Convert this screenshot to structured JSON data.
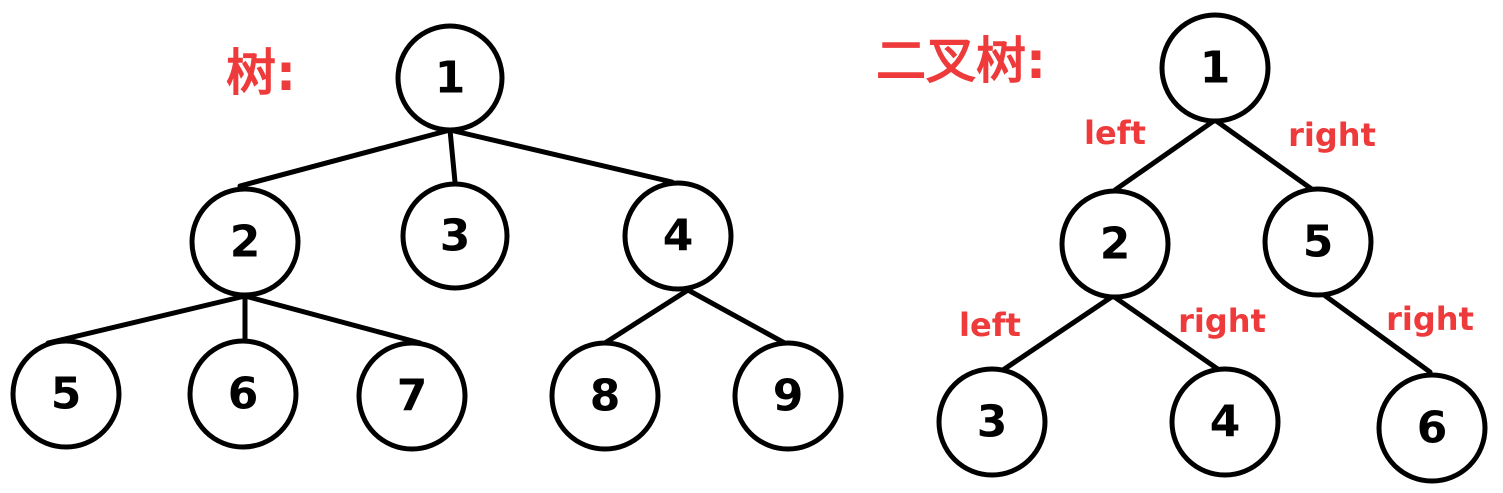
{
  "colors": {
    "accent": "#ee3a3a",
    "stroke": "#000000",
    "background": "#ffffff"
  },
  "general_tree": {
    "title": "树:",
    "nodes": [
      "1",
      "2",
      "3",
      "4",
      "5",
      "6",
      "7",
      "8",
      "9"
    ],
    "edges": [
      [
        "1",
        "2"
      ],
      [
        "1",
        "3"
      ],
      [
        "1",
        "4"
      ],
      [
        "2",
        "5"
      ],
      [
        "2",
        "6"
      ],
      [
        "2",
        "7"
      ],
      [
        "4",
        "8"
      ],
      [
        "4",
        "9"
      ]
    ]
  },
  "binary_tree": {
    "title": "二叉树:",
    "nodes": [
      "1",
      "2",
      "5",
      "3",
      "4",
      "6"
    ],
    "edges": [
      {
        "from": "1",
        "to": "2",
        "label": "left"
      },
      {
        "from": "1",
        "to": "5",
        "label": "right"
      },
      {
        "from": "2",
        "to": "3",
        "label": "left"
      },
      {
        "from": "2",
        "to": "4",
        "label": "right"
      },
      {
        "from": "5",
        "to": "6",
        "label": "right"
      }
    ]
  }
}
